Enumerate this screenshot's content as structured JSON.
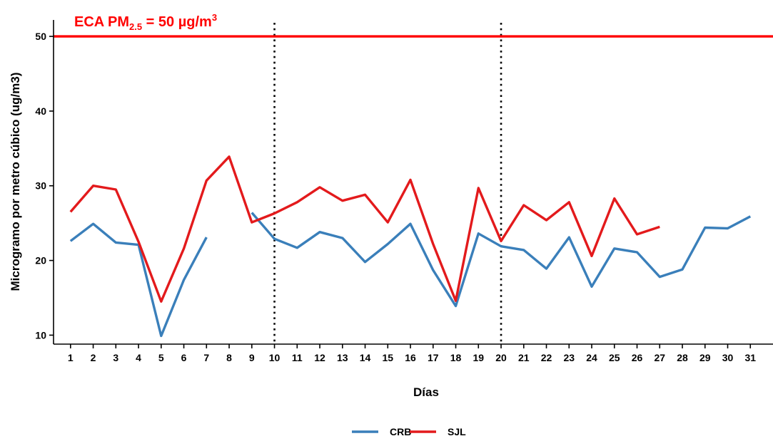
{
  "chart_data": {
    "type": "line",
    "xlabel": "Días",
    "ylabel": "Microgramo por metro cúbico (ug/m3)",
    "x": [
      1,
      2,
      3,
      4,
      5,
      6,
      7,
      8,
      9,
      10,
      11,
      12,
      13,
      14,
      15,
      16,
      17,
      18,
      19,
      20,
      21,
      22,
      23,
      24,
      25,
      26,
      27,
      28,
      29,
      30,
      31
    ],
    "xlim": [
      0.25,
      32
    ],
    "ylim": [
      8.8,
      52.2
    ],
    "yticks": [
      10,
      20,
      30,
      40,
      50
    ],
    "series": [
      {
        "name": "CRB",
        "color": "#3a7fba",
        "values": [
          22.6,
          24.9,
          22.4,
          22.1,
          9.9,
          17.4,
          23.1,
          null,
          26.4,
          22.9,
          21.7,
          23.8,
          23.0,
          19.8,
          22.2,
          24.9,
          18.7,
          13.9,
          23.6,
          21.9,
          21.4,
          18.9,
          23.1,
          16.5,
          21.6,
          21.1,
          17.8,
          18.8,
          24.4,
          24.3,
          25.9
        ]
      },
      {
        "name": "SJL",
        "color": "#e31a1c",
        "values": [
          26.5,
          30.0,
          29.5,
          22.5,
          14.5,
          21.6,
          30.7,
          33.9,
          25.1,
          26.3,
          27.8,
          29.8,
          28.0,
          28.8,
          25.1,
          30.8,
          22.2,
          14.6,
          29.7,
          22.6,
          27.4,
          25.4,
          27.8,
          20.6,
          28.3,
          23.5,
          24.5,
          null,
          null,
          null,
          null
        ]
      }
    ],
    "reference_line": {
      "value": 50,
      "color": "#ff0000",
      "label_main": "ECA PM",
      "label_sub": "2.5",
      "label_rest": " = 50 µg/m",
      "label_sup": "3"
    },
    "vlines": [
      10,
      20
    ],
    "legend_position": "bottom",
    "grid": false
  }
}
